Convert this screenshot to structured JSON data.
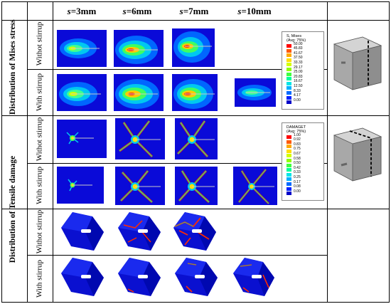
{
  "columns": [
    {
      "var": "s",
      "val": "=3mm"
    },
    {
      "var": "s",
      "val": "=6mm"
    },
    {
      "var": "s",
      "val": "=7mm"
    },
    {
      "var": "s",
      "val": "=10mm"
    }
  ],
  "sections": {
    "mises": "Distribution of Mises stress",
    "tensile": "Distribution of Tensile damage"
  },
  "rows": {
    "without": "Withot stirrup",
    "with": "With stirrup"
  },
  "legend_mises": {
    "title1": "S, Mises",
    "title2": "(Avg: 75%)",
    "values": [
      "50.00",
      "45.83",
      "41.67",
      "37.50",
      "33.33",
      "29.17",
      "25.00",
      "20.83",
      "16.67",
      "12.50",
      "8.33",
      "4.17",
      "0.00"
    ],
    "colors": [
      "#ff0000",
      "#ff5a00",
      "#ffaa00",
      "#ffe000",
      "#d4ff00",
      "#90ff00",
      "#40ff40",
      "#00ff9a",
      "#00e6e6",
      "#00b0ff",
      "#006aff",
      "#0022ff",
      "#0000c8"
    ]
  },
  "legend_damage": {
    "title1": "DAMAGET",
    "title2": "(Avg: 75%)",
    "values": [
      "1.00",
      "0.92",
      "0.83",
      "0.75",
      "0.67",
      "0.58",
      "0.50",
      "0.42",
      "0.33",
      "0.25",
      "0.17",
      "0.08",
      "0.00"
    ],
    "colors": [
      "#ff0000",
      "#ff5a00",
      "#ffaa00",
      "#ffe000",
      "#d4ff00",
      "#90ff00",
      "#40ff40",
      "#00ff9a",
      "#00e6e6",
      "#00b0ff",
      "#006aff",
      "#0022ff",
      "#0000c8"
    ]
  }
}
